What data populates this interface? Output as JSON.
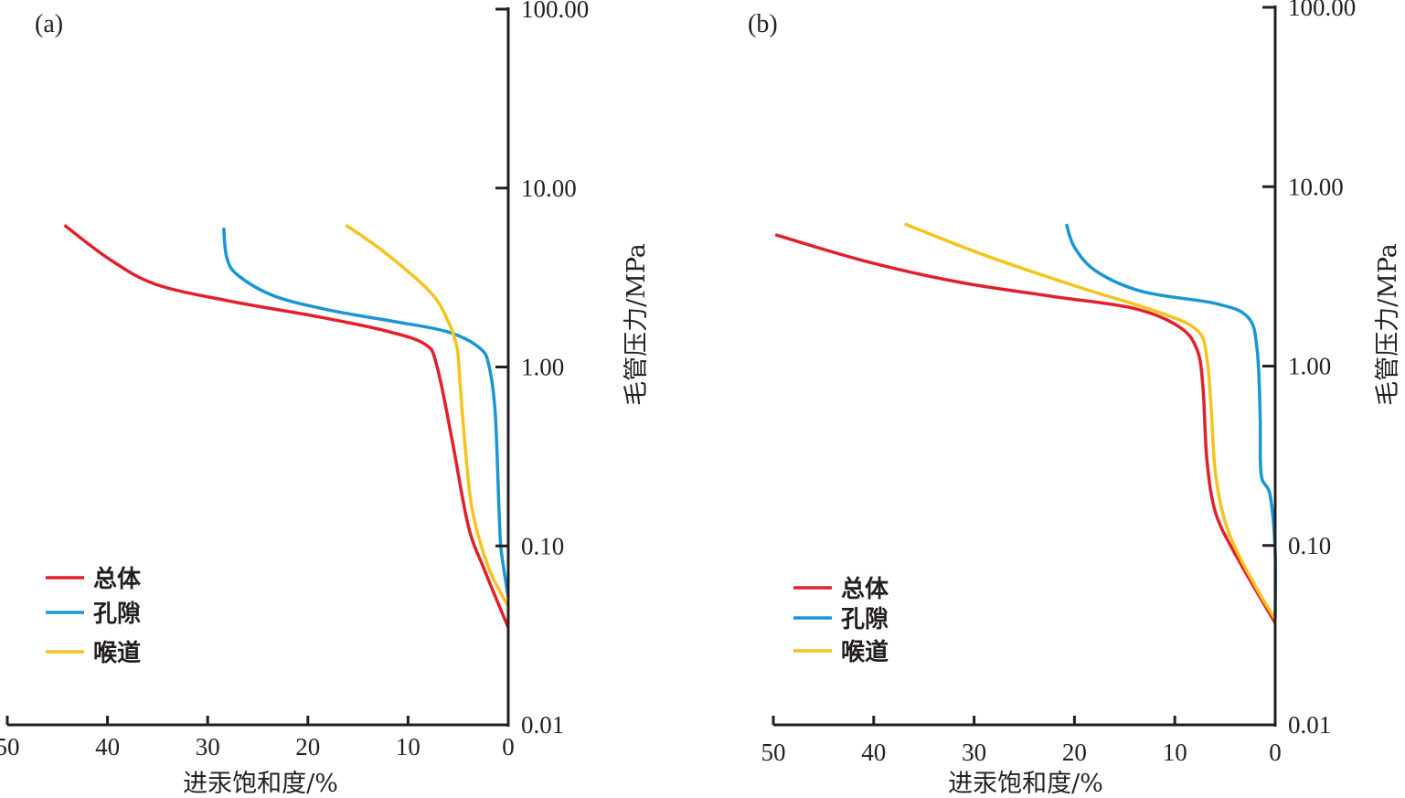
{
  "chart_data": [
    {
      "type": "line",
      "panel_label": "(a)",
      "title": "",
      "xlabel": "进汞饱和度/%",
      "ylabel": "毛管压力/MPa",
      "x_reversed": true,
      "xlim": [
        50,
        0
      ],
      "ylim": [
        0.01,
        100
      ],
      "yscale": "log",
      "x_ticks": [
        "50",
        "40",
        "30",
        "20",
        "10",
        "0"
      ],
      "x_tick_values": [
        50,
        40,
        30,
        20,
        10,
        0
      ],
      "y_ticks": [
        "100.00",
        "10.00",
        "1.00",
        "0.10",
        "0.01"
      ],
      "y_tick_values": [
        100,
        10,
        1,
        0.1,
        0.01
      ],
      "grid": false,
      "legend_position": "bottom-left",
      "series": [
        {
          "name": "总体",
          "color": "#e0212b",
          "x": [
            44.3,
            39.8,
            35.2,
            27.9,
            18.8,
            12.4,
            8.3,
            7.1,
            5.6,
            4.0,
            2.4,
            0
          ],
          "y": [
            6.2,
            4.0,
            2.9,
            2.34,
            1.9,
            1.6,
            1.34,
            1.0,
            0.39,
            0.13,
            0.074,
            0.035
          ]
        },
        {
          "name": "孔隙",
          "color": "#1a96d4",
          "x": [
            28.4,
            28.1,
            27.0,
            23.4,
            17.9,
            11.5,
            6.0,
            2.8,
            1.9,
            1.3,
            0.9,
            0.7,
            0
          ],
          "y": [
            6.0,
            4.1,
            3.26,
            2.5,
            2.08,
            1.8,
            1.57,
            1.27,
            1.0,
            0.55,
            0.15,
            0.094,
            0.052
          ]
        },
        {
          "name": "喉道",
          "color": "#f5c31c",
          "x": [
            16.2,
            12.4,
            7.8,
            6.0,
            5.1,
            4.8,
            4.2,
            3.5,
            1.9,
            0
          ],
          "y": [
            6.2,
            4.4,
            2.63,
            1.8,
            1.27,
            0.79,
            0.31,
            0.15,
            0.074,
            0.046
          ]
        }
      ]
    },
    {
      "type": "line",
      "panel_label": "(b)",
      "title": "",
      "xlabel": "进汞饱和度/%",
      "ylabel": "毛管压力/MPa",
      "x_reversed": true,
      "xlim": [
        50,
        0
      ],
      "ylim": [
        0.01,
        100
      ],
      "yscale": "log",
      "x_ticks": [
        "50",
        "40",
        "30",
        "20",
        "10",
        "0"
      ],
      "x_tick_values": [
        50,
        40,
        30,
        20,
        10,
        0
      ],
      "y_ticks": [
        "100.00",
        "10.00",
        "1.00",
        "0.10",
        "0.01"
      ],
      "y_tick_values": [
        100,
        10,
        1,
        0.1,
        0.01
      ],
      "grid": false,
      "legend_position": "bottom-left",
      "series": [
        {
          "name": "总体",
          "color": "#e0212b",
          "x": [
            49.8,
            40.5,
            31.4,
            22.3,
            14.1,
            9.6,
            7.8,
            7.2,
            6.8,
            5.9,
            3.6,
            0
          ],
          "y": [
            5.4,
            3.8,
            2.93,
            2.45,
            2.1,
            1.66,
            1.24,
            0.77,
            0.3,
            0.15,
            0.082,
            0.037
          ]
        },
        {
          "name": "孔隙",
          "color": "#1a96d4",
          "x": [
            20.8,
            20.0,
            17.8,
            13.2,
            5.9,
            2.7,
            1.8,
            1.5,
            1.4,
            0.5,
            0,
            0
          ],
          "y": [
            6.2,
            4.6,
            3.37,
            2.6,
            2.23,
            1.87,
            1.24,
            0.54,
            0.25,
            0.19,
            0.092,
            0.039
          ]
        },
        {
          "name": "喉道",
          "color": "#f5c31c",
          "x": [
            36.9,
            28.7,
            19.6,
            11.4,
            7.7,
            6.8,
            6.4,
            5.9,
            4.6,
            1.8,
            0
          ],
          "y": [
            6.2,
            4.1,
            2.76,
            1.98,
            1.57,
            1.1,
            0.61,
            0.24,
            0.117,
            0.057,
            0.039
          ]
        }
      ]
    }
  ]
}
